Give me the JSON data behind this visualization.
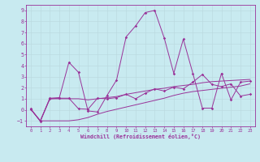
{
  "xlabel": "Windchill (Refroidissement éolien,°C)",
  "xlim": [
    -0.5,
    23.5
  ],
  "ylim": [
    -1.5,
    9.5
  ],
  "yticks": [
    -1,
    0,
    1,
    2,
    3,
    4,
    5,
    6,
    7,
    8,
    9
  ],
  "xticks": [
    0,
    1,
    2,
    3,
    4,
    5,
    6,
    7,
    8,
    9,
    10,
    11,
    12,
    13,
    14,
    15,
    16,
    17,
    18,
    19,
    20,
    21,
    22,
    23
  ],
  "bg_color": "#c8eaf0",
  "line_color": "#993399",
  "grid_color": "#aad8e0",
  "line1_x": [
    0,
    1,
    2,
    3,
    4,
    5,
    6,
    7,
    8,
    9,
    10,
    11,
    12,
    13,
    14,
    15,
    16,
    17,
    18,
    19,
    20,
    21,
    22,
    23
  ],
  "line1_y": [
    0.05,
    -1.0,
    1.05,
    1.1,
    4.3,
    3.4,
    -0.1,
    -0.2,
    1.3,
    2.7,
    6.6,
    7.6,
    8.8,
    9.0,
    6.5,
    3.3,
    6.4,
    3.3,
    0.15,
    0.15,
    3.3,
    0.9,
    2.5,
    2.6
  ],
  "line2_x": [
    0,
    1,
    2,
    3,
    4,
    5,
    6,
    7,
    8,
    9,
    10,
    11,
    12,
    13,
    14,
    15,
    16,
    17,
    18,
    19,
    20,
    21,
    22,
    23
  ],
  "line2_y": [
    0.1,
    -1.05,
    1.0,
    1.05,
    1.05,
    0.1,
    0.05,
    1.05,
    1.0,
    1.1,
    1.4,
    1.0,
    1.5,
    1.9,
    1.7,
    2.05,
    1.9,
    2.5,
    3.2,
    2.3,
    2.1,
    2.35,
    1.25,
    1.4
  ],
  "line3_x": [
    0,
    1,
    2,
    3,
    4,
    5,
    6,
    7,
    8,
    9,
    10,
    11,
    12,
    13,
    14,
    15,
    16,
    17,
    18,
    19,
    20,
    21,
    22,
    23
  ],
  "line3_y": [
    0.05,
    -1.0,
    -1.0,
    -1.0,
    -1.0,
    -0.9,
    -0.7,
    -0.4,
    -0.15,
    0.05,
    0.25,
    0.45,
    0.65,
    0.85,
    1.05,
    1.3,
    1.5,
    1.65,
    1.75,
    1.85,
    1.95,
    2.05,
    2.15,
    2.35
  ],
  "line4_x": [
    0,
    1,
    2,
    3,
    4,
    5,
    6,
    7,
    8,
    9,
    10,
    11,
    12,
    13,
    14,
    15,
    16,
    17,
    18,
    19,
    20,
    21,
    22,
    23
  ],
  "line4_y": [
    0.05,
    -1.0,
    1.0,
    1.0,
    1.0,
    1.0,
    0.9,
    1.0,
    1.1,
    1.2,
    1.4,
    1.55,
    1.7,
    1.85,
    1.95,
    2.1,
    2.2,
    2.3,
    2.45,
    2.55,
    2.6,
    2.65,
    2.7,
    2.75
  ]
}
